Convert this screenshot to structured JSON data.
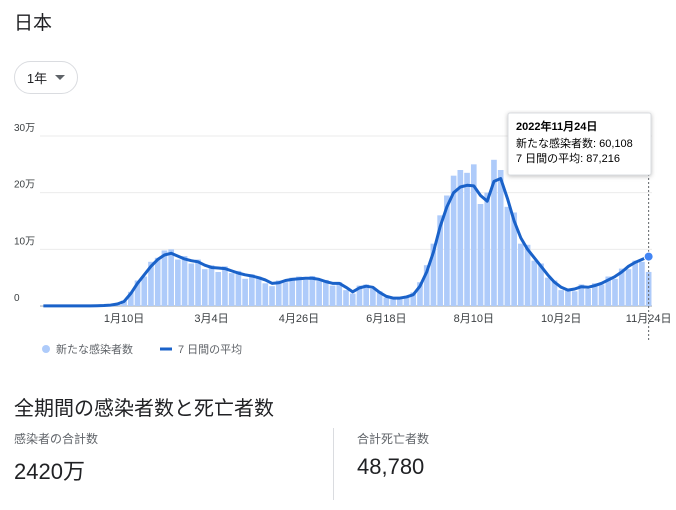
{
  "header": {
    "title": "日本",
    "range_button": "1年"
  },
  "chart_data": {
    "type": "bar-line",
    "categories": [
      null,
      null,
      null,
      null,
      null,
      null,
      null,
      null,
      null,
      null,
      null,
      null,
      "1月10日",
      null,
      null,
      null,
      null,
      null,
      null,
      null,
      null,
      null,
      null,
      null,
      null,
      "3月4日",
      null,
      null,
      null,
      null,
      null,
      null,
      null,
      null,
      null,
      null,
      null,
      null,
      "4月26日",
      null,
      null,
      null,
      null,
      null,
      null,
      null,
      null,
      null,
      null,
      null,
      null,
      "6月18日",
      null,
      null,
      null,
      null,
      null,
      null,
      null,
      null,
      null,
      null,
      null,
      null,
      "8月10日",
      null,
      null,
      null,
      null,
      null,
      null,
      null,
      null,
      null,
      null,
      null,
      null,
      "10月2日",
      null,
      null,
      null,
      null,
      null,
      null,
      null,
      null,
      null,
      null,
      null,
      null,
      "11月24日"
    ],
    "series": [
      {
        "name": "新たな感染者数",
        "color": "#aecbfa",
        "kind": "bar",
        "values": [
          300,
          250,
          210,
          180,
          230,
          200,
          320,
          280,
          600,
          900,
          1800,
          4500,
          9500,
          25000,
          45000,
          52000,
          78000,
          85000,
          98000,
          100000,
          82000,
          88000,
          75000,
          82000,
          65000,
          72000,
          60000,
          70000,
          58000,
          62000,
          48000,
          56000,
          52000,
          40000,
          35000,
          45000,
          42000,
          50000,
          52000,
          46000,
          53000,
          44000,
          46000,
          36000,
          42000,
          28000,
          22000,
          36000,
          38000,
          30000,
          26000,
          15000,
          13000,
          16000,
          18000,
          24000,
          42000,
          72000,
          110000,
          160000,
          195000,
          230000,
          240000,
          235000,
          250000,
          180000,
          200000,
          258000,
          240000,
          175000,
          165000,
          110000,
          108000,
          80000,
          75000,
          50000,
          45000,
          28000,
          31000,
          26000,
          38000,
          30000,
          40000,
          38000,
          52000,
          48000,
          66000,
          65000,
          80000,
          78000,
          60108
        ]
      },
      {
        "name": "7 日間の平均",
        "color": "#1a62c9",
        "kind": "line",
        "values": [
          300,
          300,
          200,
          200,
          200,
          200,
          300,
          300,
          500,
          800,
          1500,
          3500,
          8000,
          22000,
          40000,
          55000,
          70000,
          82000,
          90000,
          93000,
          88000,
          83000,
          80000,
          78000,
          72000,
          68000,
          67000,
          66000,
          62000,
          58000,
          55000,
          53000,
          50000,
          46000,
          40000,
          41000,
          45000,
          47000,
          48000,
          49000,
          49000,
          47000,
          43000,
          40000,
          40000,
          33000,
          25000,
          32000,
          35000,
          33000,
          24000,
          17000,
          14000,
          14000,
          16000,
          20000,
          35000,
          60000,
          95000,
          140000,
          175000,
          200000,
          210000,
          213000,
          212000,
          195000,
          185000,
          220000,
          225000,
          190000,
          150000,
          120000,
          100000,
          85000,
          70000,
          55000,
          42000,
          33000,
          28000,
          30000,
          34000,
          33000,
          36000,
          40000,
          46000,
          52000,
          60000,
          70000,
          77000,
          82000,
          87216
        ]
      }
    ],
    "ylim": [
      0,
      300000
    ],
    "yticks": [
      0,
      {
        "value": 100000,
        "label": "10万"
      },
      {
        "value": 200000,
        "label": "20万"
      },
      {
        "value": 300000,
        "label": "30万"
      }
    ],
    "grid": true,
    "tooltip": {
      "title": "2022年11月24日",
      "lines": [
        "新たな感染者数: 60,108",
        "7 日間の平均: 87,216"
      ]
    }
  },
  "summary": {
    "heading": "全期間の感染者数と死亡者数",
    "items": [
      {
        "label": "感染者の合計数",
        "value": "2420万"
      },
      {
        "label": "合計死亡者数",
        "value": "48,780"
      }
    ]
  }
}
